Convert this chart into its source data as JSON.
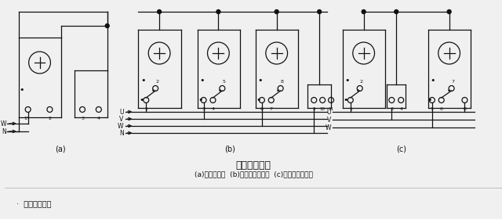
{
  "title": "电度表接线图",
  "subtitle": "(a)单相电度表  (b)三相四线电度表  (c)三相三线电度表",
  "footer": "电度表接线图",
  "bg_color": "#f0f0f0",
  "line_color": "#111111",
  "label_a": "(a)",
  "label_b": "(b)",
  "label_c": "(c)"
}
